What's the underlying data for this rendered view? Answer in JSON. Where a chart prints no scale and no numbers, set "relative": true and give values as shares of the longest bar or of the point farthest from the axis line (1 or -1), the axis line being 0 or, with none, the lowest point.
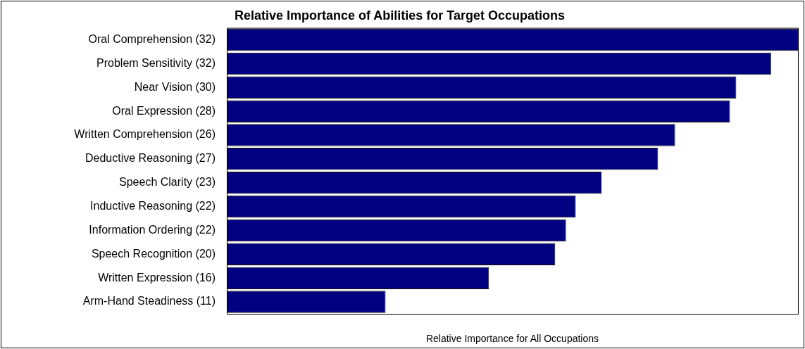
{
  "chart_data": {
    "type": "bar",
    "orientation": "horizontal",
    "relative": true,
    "title": "Relative Importance of Abilities for Target Occupations",
    "xlabel": "Relative Importance for All Occupations",
    "categories": [
      "Oral Comprehension (32)",
      "Problem Sensitivity (32)",
      "Near Vision (30)",
      "Oral Expression (28)",
      "Written Comprehension (26)",
      "Deductive Reasoning (27)",
      "Speech Clarity (23)",
      "Inductive Reasoning (22)",
      "Information Ordering (22)",
      "Speech Recognition (20)",
      "Written Expression (16)",
      "Arm-Hand Steadiness (11)"
    ],
    "values": [
      1,
      0.953,
      0.892,
      0.881,
      0.785,
      0.755,
      0.656,
      0.611,
      0.594,
      0.575,
      0.459,
      0.278
    ],
    "color": "#000080",
    "legend": false
  }
}
